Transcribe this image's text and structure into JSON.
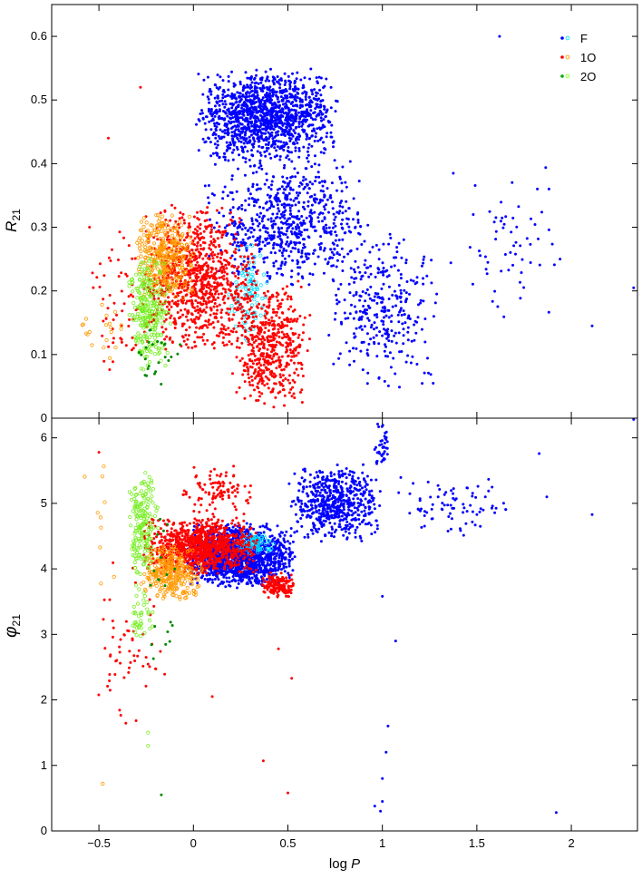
{
  "chart_data": {
    "type": "scatter",
    "shared_x": {
      "label_base": "log",
      "label_var": "P",
      "lim": [
        -0.75,
        2.35
      ],
      "ticks": [
        -0.5,
        0,
        0.5,
        1,
        1.5,
        2
      ],
      "tick_labels": [
        "−0.5",
        "0",
        "0.5",
        "1",
        "1.5",
        "2"
      ]
    },
    "legend": {
      "placement": "top-right",
      "entries": [
        {
          "label": "F",
          "color": "#0000ff",
          "outline": "#00e5ff"
        },
        {
          "label": "1O",
          "color": "#ff0000",
          "outline": "#ff9900"
        },
        {
          "label": "2O",
          "color": "#00aa00",
          "outline": "#88ff33"
        }
      ]
    },
    "colors": {
      "F": "#0000ff",
      "F_open": "#00e0ff",
      "1O": "#ff0000",
      "1O_open": "#ff9900",
      "2O": "#008800",
      "2O_open": "#77ee22"
    },
    "panels": [
      {
        "id": "R21",
        "ylabel_base": "R",
        "ylabel_sub": "21",
        "ylim": [
          0,
          0.65
        ],
        "yticks": [
          0,
          0.1,
          0.2,
          0.3,
          0.4,
          0.5,
          0.6
        ],
        "ytick_labels": [
          "0",
          "0.1",
          "0.2",
          "0.3",
          "0.4",
          "0.5",
          "0.6"
        ],
        "series": [
          {
            "mode": "F",
            "style": "filled",
            "clusters": [
              {
                "xmin": 0.0,
                "xmax": 0.78,
                "ymin": 0.4,
                "ymax": 0.55,
                "n": 1300
              },
              {
                "xmin": 0.05,
                "xmax": 0.95,
                "ymin": 0.2,
                "ymax": 0.42,
                "n": 700
              },
              {
                "xmin": 0.7,
                "xmax": 1.3,
                "ymin": 0.04,
                "ymax": 0.3,
                "n": 320
              },
              {
                "xmin": 1.3,
                "xmax": 2.0,
                "ymin": 0.15,
                "ymax": 0.4,
                "n": 60
              }
            ],
            "points": [
              [
                1.62,
                0.6
              ],
              [
                2.33,
                0.205
              ],
              [
                2.11,
                0.145
              ],
              [
                1.82,
                0.36
              ],
              [
                1.94,
                0.25
              ]
            ]
          },
          {
            "mode": "F",
            "style": "open",
            "clusters": [
              {
                "xmin": 0.18,
                "xmax": 0.4,
                "ymin": 0.12,
                "ymax": 0.28,
                "n": 90
              }
            ],
            "points": []
          },
          {
            "mode": "1O",
            "style": "filled",
            "clusters": [
              {
                "xmin": -0.3,
                "xmax": 0.35,
                "ymin": 0.1,
                "ymax": 0.34,
                "n": 900
              },
              {
                "xmin": 0.2,
                "xmax": 0.62,
                "ymin": 0.01,
                "ymax": 0.22,
                "n": 500
              },
              {
                "xmin": -0.55,
                "xmax": -0.2,
                "ymin": 0.05,
                "ymax": 0.3,
                "n": 60
              }
            ],
            "points": [
              [
                -0.45,
                0.44
              ],
              [
                -0.28,
                0.52
              ],
              [
                -0.55,
                0.3
              ]
            ]
          },
          {
            "mode": "1O",
            "style": "open",
            "clusters": [
              {
                "xmin": -0.32,
                "xmax": 0.02,
                "ymin": 0.18,
                "ymax": 0.33,
                "n": 350
              },
              {
                "xmin": -0.6,
                "xmax": -0.35,
                "ymin": 0.09,
                "ymax": 0.21,
                "n": 20
              }
            ],
            "points": []
          },
          {
            "mode": "2O",
            "style": "open",
            "clusters": [
              {
                "xmin": -0.35,
                "xmax": -0.12,
                "ymin": 0.07,
                "ymax": 0.26,
                "n": 260
              }
            ],
            "points": []
          },
          {
            "mode": "2O",
            "style": "filled",
            "clusters": [
              {
                "xmin": -0.35,
                "xmax": -0.05,
                "ymin": 0.05,
                "ymax": 0.16,
                "n": 25
              }
            ],
            "points": []
          }
        ]
      },
      {
        "id": "phi21",
        "ylabel_base": "φ",
        "ylabel_sub": "21",
        "ylim": [
          0,
          6.3
        ],
        "yticks": [
          0,
          1,
          2,
          3,
          4,
          5,
          6
        ],
        "ytick_labels": [
          "0",
          "1",
          "2",
          "3",
          "4",
          "5",
          "6"
        ],
        "series": [
          {
            "mode": "F",
            "style": "filled",
            "clusters": [
              {
                "xmin": -0.05,
                "xmax": 0.55,
                "ymin": 3.7,
                "ymax": 4.7,
                "n": 1500
              },
              {
                "xmin": 0.5,
                "xmax": 1.0,
                "ymin": 4.4,
                "ymax": 5.6,
                "n": 600
              },
              {
                "xmin": 0.95,
                "xmax": 1.05,
                "ymin": 5.5,
                "ymax": 6.25,
                "n": 40
              },
              {
                "xmin": 1.05,
                "xmax": 1.7,
                "ymin": 4.4,
                "ymax": 5.5,
                "n": 80
              }
            ],
            "points": [
              [
                0.96,
                0.38
              ],
              [
                0.99,
                0.3
              ],
              [
                1.0,
                0.45
              ],
              [
                1.02,
                1.2
              ],
              [
                1.03,
                1.6
              ],
              [
                1.0,
                0.8
              ],
              [
                1.07,
                2.9
              ],
              [
                1.0,
                3.58
              ],
              [
                1.92,
                0.28
              ],
              [
                2.11,
                4.83
              ],
              [
                1.87,
                5.1
              ],
              [
                1.83,
                5.76
              ],
              [
                2.33,
                6.28
              ]
            ]
          },
          {
            "mode": "F",
            "style": "open",
            "clusters": [
              {
                "xmin": 0.2,
                "xmax": 0.45,
                "ymin": 4.2,
                "ymax": 4.6,
                "n": 80
              }
            ],
            "points": []
          },
          {
            "mode": "1O",
            "style": "filled",
            "clusters": [
              {
                "xmin": -0.28,
                "xmax": 0.35,
                "ymin": 3.9,
                "ymax": 4.8,
                "n": 1000
              },
              {
                "xmin": 0.35,
                "xmax": 0.55,
                "ymin": 3.55,
                "ymax": 3.95,
                "n": 150
              },
              {
                "xmin": -0.1,
                "xmax": 0.35,
                "ymin": 4.8,
                "ymax": 5.6,
                "n": 100
              },
              {
                "xmin": -0.55,
                "xmax": -0.15,
                "ymin": 1.5,
                "ymax": 4.2,
                "n": 60
              }
            ],
            "points": [
              [
                -0.5,
                5.78
              ],
              [
                0.5,
                0.58
              ],
              [
                0.37,
                1.07
              ],
              [
                0.52,
                2.33
              ],
              [
                0.45,
                2.78
              ],
              [
                0.1,
                2.05
              ]
            ]
          },
          {
            "mode": "1O",
            "style": "open",
            "clusters": [
              {
                "xmin": -0.28,
                "xmax": 0.05,
                "ymin": 3.5,
                "ymax": 4.4,
                "n": 300
              },
              {
                "xmin": -0.6,
                "xmax": -0.4,
                "ymin": 3.6,
                "ymax": 6.2,
                "n": 10
              }
            ],
            "points": [
              [
                -0.48,
                0.72
              ]
            ]
          },
          {
            "mode": "2O",
            "style": "open",
            "clusters": [
              {
                "xmin": -0.35,
                "xmax": -0.18,
                "ymin": 3.8,
                "ymax": 5.6,
                "n": 180
              },
              {
                "xmin": -0.35,
                "xmax": -0.2,
                "ymin": 2.8,
                "ymax": 3.8,
                "n": 40
              }
            ],
            "points": [
              [
                -0.24,
                1.5
              ],
              [
                -0.24,
                1.3
              ]
            ]
          },
          {
            "mode": "2O",
            "style": "filled",
            "clusters": [
              {
                "xmin": -0.28,
                "xmax": -0.08,
                "ymin": 2.4,
                "ymax": 5.1,
                "n": 20
              }
            ],
            "points": [
              [
                -0.17,
                0.55
              ]
            ]
          }
        ]
      }
    ]
  }
}
